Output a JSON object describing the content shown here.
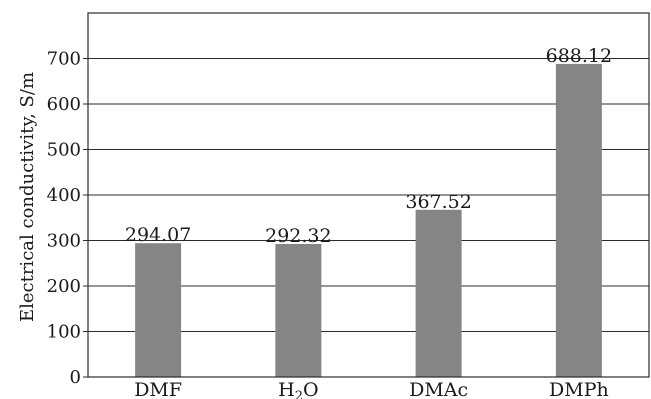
{
  "chart_data": {
    "type": "bar",
    "categories": [
      "DMF",
      "H2O",
      "DMAc",
      "DMPh"
    ],
    "category_display": [
      {
        "main": "DMF",
        "sub": "",
        "rest": ""
      },
      {
        "main": "H",
        "sub": "2",
        "rest": "O"
      },
      {
        "main": "DMAc",
        "sub": "",
        "rest": ""
      },
      {
        "main": "DMPh",
        "sub": "",
        "rest": ""
      }
    ],
    "values": [
      294.07,
      292.32,
      367.52,
      688.12
    ],
    "data_labels": [
      "294.07",
      "292.32",
      "367.52",
      "688.12"
    ],
    "title": "",
    "xlabel": "",
    "ylabel": "Electrical conductivity, S/m",
    "ylim": [
      0,
      800
    ],
    "yticks": [
      0,
      100,
      200,
      300,
      400,
      500,
      600,
      700
    ],
    "grid": true,
    "legend": "none",
    "bar_color": "#858585"
  }
}
